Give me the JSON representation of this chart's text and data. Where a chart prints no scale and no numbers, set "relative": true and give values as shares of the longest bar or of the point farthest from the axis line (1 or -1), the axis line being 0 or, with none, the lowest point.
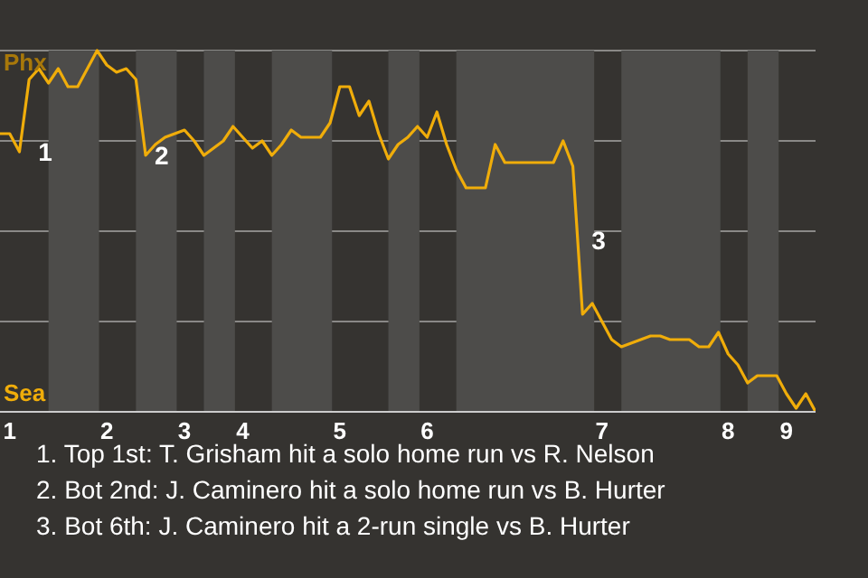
{
  "chart_data": {
    "type": "line",
    "relative": true,
    "categories": [
      null,
      "1",
      null,
      null,
      null,
      null,
      null,
      null,
      null,
      null,
      null,
      "2",
      null,
      null,
      null,
      null,
      null,
      null,
      null,
      "3",
      null,
      null,
      null,
      null,
      null,
      "4",
      null,
      null,
      null,
      null,
      null,
      null,
      null,
      null,
      null,
      "5",
      null,
      null,
      null,
      null,
      null,
      null,
      null,
      null,
      "6",
      null,
      null,
      null,
      null,
      null,
      null,
      null,
      null,
      null,
      null,
      null,
      null,
      null,
      null,
      null,
      null,
      null,
      "7",
      null,
      null,
      null,
      null,
      null,
      null,
      null,
      null,
      null,
      null,
      null,
      null,
      "8",
      null,
      null,
      null,
      null,
      null,
      "9",
      null,
      null,
      null
    ],
    "series": [
      {
        "color": "#f0ad0a",
        "values": [
          0.77,
          0.77,
          0.72,
          0.92,
          0.95,
          0.91,
          0.95,
          0.9,
          0.9,
          0.95,
          1,
          0.96,
          0.94,
          0.95,
          0.92,
          0.71,
          0.74,
          0.76,
          0.77,
          0.78,
          0.75,
          0.71,
          0.73,
          0.75,
          0.79,
          0.76,
          0.73,
          0.75,
          0.71,
          0.74,
          0.78,
          0.76,
          0.76,
          0.76,
          0.8,
          0.9,
          0.9,
          0.82,
          0.86,
          0.77,
          0.7,
          0.74,
          0.76,
          0.79,
          0.76,
          0.83,
          0.74,
          0.67,
          0.62,
          0.62,
          0.62,
          0.74,
          0.69,
          0.69,
          0.69,
          0.69,
          0.69,
          0.69,
          0.75,
          0.68,
          0.27,
          0.3,
          0.25,
          0.2,
          0.18,
          0.19,
          0.2,
          0.21,
          0.21,
          0.2,
          0.2,
          0.2,
          0.18,
          0.18,
          0.22,
          0.16,
          0.13,
          0.08,
          0.1,
          0.1,
          0.1,
          0.05,
          0.01,
          0.05,
          0
        ]
      }
    ],
    "grid": "y",
    "annotations": [
      "Phx",
      "Sea",
      "1",
      "2",
      "3",
      "1. Top 1st: T. Grisham hit a solo home run vs R. Nelson",
      "2. Bot 2nd: J. Caminero hit a solo home run vs B. Hurter",
      "3. Bot 6th: J. Caminero hit a 2-run single vs B. Hurter"
    ]
  }
}
